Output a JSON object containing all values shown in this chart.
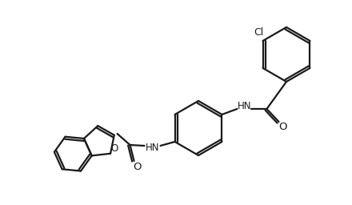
{
  "bg_color": "#ffffff",
  "line_color": "#1a1a1a",
  "line_width": 1.6,
  "figsize": [
    4.4,
    2.56
  ],
  "dpi": 100,
  "cl_label": "Cl",
  "hn_label": "HN",
  "hn2_label": "HN",
  "o_label": "O",
  "o2_label": "O",
  "font_size": 8.5
}
